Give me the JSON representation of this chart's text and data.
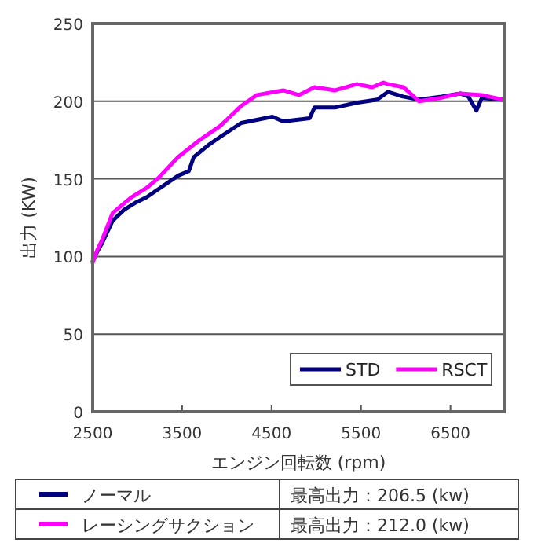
{
  "chart_data": {
    "type": "line",
    "xlabel": "エンジン回転数 (rpm)",
    "ylabel": "出力 (KW)",
    "xlim": [
      2500,
      7100
    ],
    "xticks": [
      2500,
      3500,
      4500,
      5500,
      6500
    ],
    "ylim": [
      0,
      250
    ],
    "yticks": [
      0,
      50,
      100,
      150,
      200,
      250
    ],
    "grid": "y",
    "legend": "bottom right",
    "marker": "none",
    "line_style": "solid",
    "series": [
      {
        "name": "STD",
        "color": "#000080",
        "x": [
          2500,
          2550,
          2600,
          2723,
          2850,
          2991,
          3100,
          3225,
          3455,
          3575,
          3630,
          3800,
          3925,
          4160,
          4510,
          4630,
          4925,
          4980,
          5210,
          5450,
          5680,
          5800,
          5970,
          6150,
          6400,
          6610,
          6700,
          6790,
          6850,
          7090
        ],
        "values": [
          97,
          103,
          108,
          123,
          130,
          135,
          138,
          143,
          152,
          155,
          164,
          172,
          177,
          186,
          190,
          187,
          189,
          196,
          196,
          199,
          201,
          206,
          203,
          201,
          203,
          205,
          203,
          194,
          202,
          201
        ]
      },
      {
        "name": "RSCT",
        "color": "#ff00ff",
        "x": [
          2500,
          2550,
          2600,
          2723,
          2930,
          3100,
          3225,
          3455,
          3695,
          3925,
          4160,
          4335,
          4630,
          4805,
          4980,
          5210,
          5450,
          5625,
          5750,
          5800,
          5975,
          6150,
          6380,
          6610,
          6850,
          7090
        ],
        "values": [
          96,
          104,
          110,
          128,
          138,
          144,
          150,
          164,
          175,
          184,
          197,
          204,
          207,
          204,
          209,
          207,
          211,
          209,
          212,
          211,
          209,
          200,
          202,
          205,
          204,
          201
        ]
      }
    ],
    "annotations": [
      "ノーマル",
      "最高出力：206.5 (kw)",
      "レーシングサクション",
      "最高出力：212.0 (kw)"
    ]
  }
}
